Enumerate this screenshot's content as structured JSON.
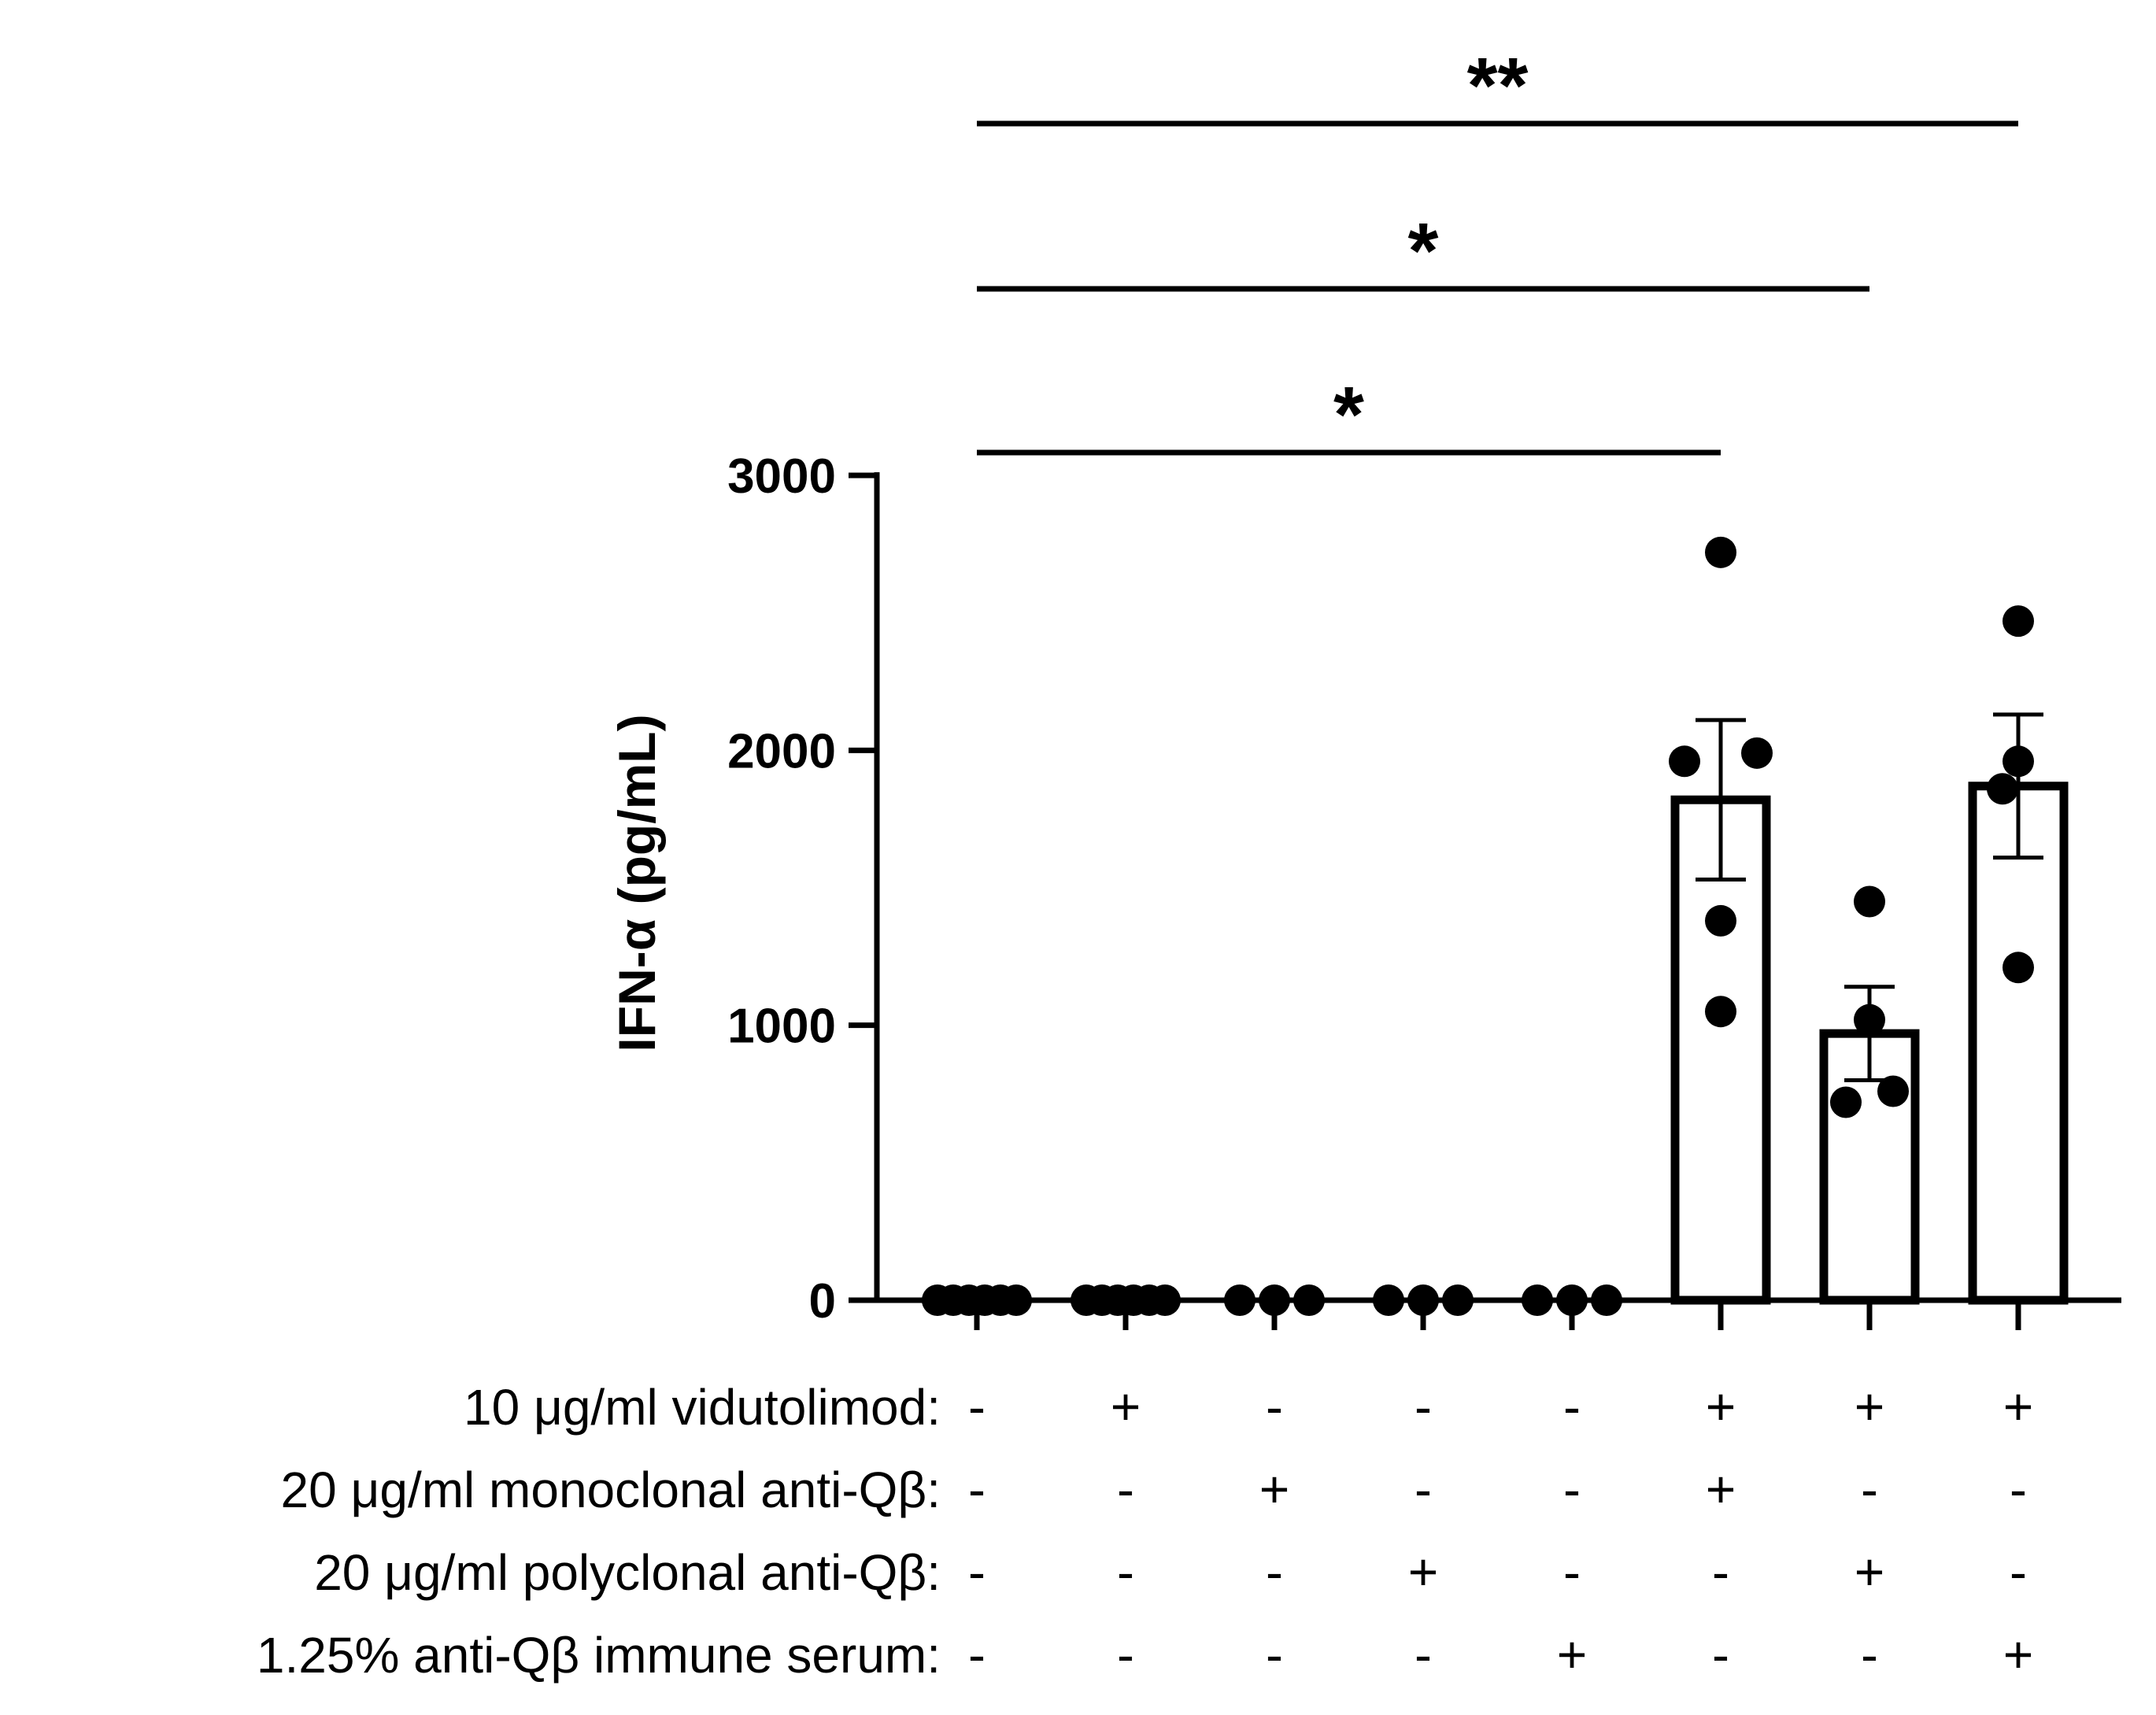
{
  "chart_data": {
    "type": "bar",
    "title": "",
    "ylabel": "IFN-α (pg/mL)",
    "xlabel": "",
    "ylim": [
      0,
      3000
    ],
    "yticks": [
      0,
      1000,
      2000,
      3000
    ],
    "ytick_labels": [
      "0",
      "1000",
      "2000",
      "3000"
    ],
    "groups": [
      {
        "mean": 0,
        "sem": 0,
        "points": [
          0,
          0,
          0,
          0,
          0,
          0
        ]
      },
      {
        "mean": 0,
        "sem": 0,
        "points": [
          0,
          0,
          0,
          0,
          0,
          0
        ]
      },
      {
        "mean": 0,
        "sem": 0,
        "points": [
          0,
          0,
          0
        ]
      },
      {
        "mean": 0,
        "sem": 0,
        "points": [
          0,
          0,
          0
        ]
      },
      {
        "mean": 0,
        "sem": 0,
        "points": [
          0,
          0,
          0
        ]
      },
      {
        "mean": 1820,
        "sem": 290,
        "points": [
          2720,
          1960,
          1990,
          1380,
          1050
        ]
      },
      {
        "mean": 970,
        "sem": 170,
        "points": [
          1450,
          1020,
          720,
          760
        ]
      },
      {
        "mean": 1870,
        "sem": 260,
        "points": [
          2470,
          1960,
          1210,
          1860
        ]
      }
    ],
    "significance": [
      {
        "from": 0,
        "to": 5,
        "label": "*"
      },
      {
        "from": 0,
        "to": 6,
        "label": "*"
      },
      {
        "from": 0,
        "to": 7,
        "label": "**"
      }
    ],
    "conditions": [
      {
        "label": "10 μg/ml vidutolimod:",
        "values": [
          "-",
          "+",
          "-",
          "-",
          "-",
          "+",
          "+",
          "+"
        ]
      },
      {
        "label": "20 μg/ml monoclonal anti-Qβ:",
        "values": [
          "-",
          "-",
          "+",
          "-",
          "-",
          "+",
          "-",
          "-"
        ]
      },
      {
        "label": "20 μg/ml polyclonal anti-Qβ:",
        "values": [
          "-",
          "-",
          "-",
          "+",
          "-",
          "-",
          "+",
          "-"
        ]
      },
      {
        "label": "1.25% anti-Qβ immune serum:",
        "values": [
          "-",
          "-",
          "-",
          "-",
          "+",
          "-",
          "-",
          "+"
        ]
      }
    ]
  }
}
